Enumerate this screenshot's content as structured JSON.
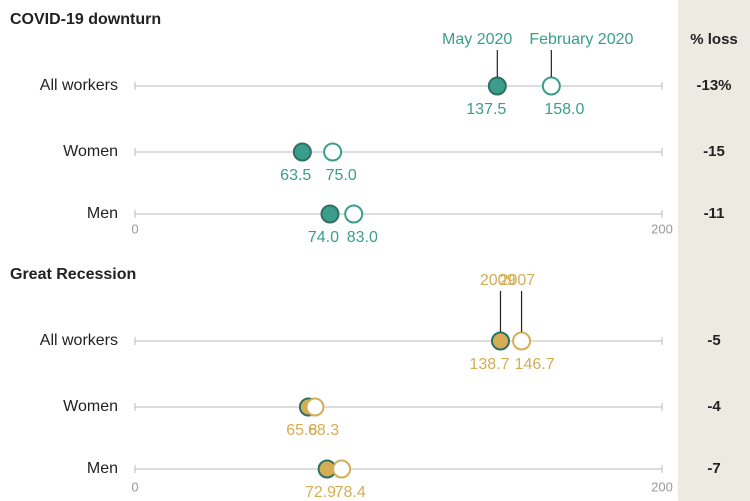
{
  "chart_data": [
    {
      "type": "dot",
      "title": "COVID-19 downturn",
      "categories": [
        "All workers",
        "Women",
        "Men"
      ],
      "series": [
        {
          "name": "May 2020",
          "color": "#3a9e8b",
          "filled": true,
          "values": [
            137.5,
            63.5,
            74.0
          ],
          "value_labels": [
            "137.5",
            "63.5",
            "74.0"
          ]
        },
        {
          "name": "February 2020",
          "color": "#3a9e8b",
          "filled": false,
          "values": [
            158.0,
            75.0,
            83.0
          ],
          "value_labels": [
            "158.0",
            "75.0",
            "83.0"
          ]
        }
      ],
      "xlim": [
        0,
        200
      ],
      "xticks": [
        0,
        200
      ],
      "loss": {
        "header": "% loss",
        "values": [
          -13,
          -15,
          -11
        ],
        "value_labels": [
          "-13%",
          "-15",
          "-11"
        ]
      }
    },
    {
      "type": "dot",
      "title": "Great Recession",
      "categories": [
        "All workers",
        "Women",
        "Men"
      ],
      "series": [
        {
          "name": "2009",
          "color": "#d4ad55",
          "filled": true,
          "values": [
            138.7,
            65.8,
            72.9
          ],
          "value_labels": [
            "138.7",
            "65.8",
            "72.9"
          ]
        },
        {
          "name": "2007",
          "color": "#d4ad55",
          "filled": false,
          "values": [
            146.7,
            68.3,
            78.4
          ],
          "value_labels": [
            "146.7",
            "68.3",
            "78.4"
          ]
        }
      ],
      "xlim": [
        0,
        200
      ],
      "xticks": [
        0,
        200
      ],
      "loss": {
        "values": [
          -5,
          -4,
          -7
        ]
      }
    }
  ]
}
